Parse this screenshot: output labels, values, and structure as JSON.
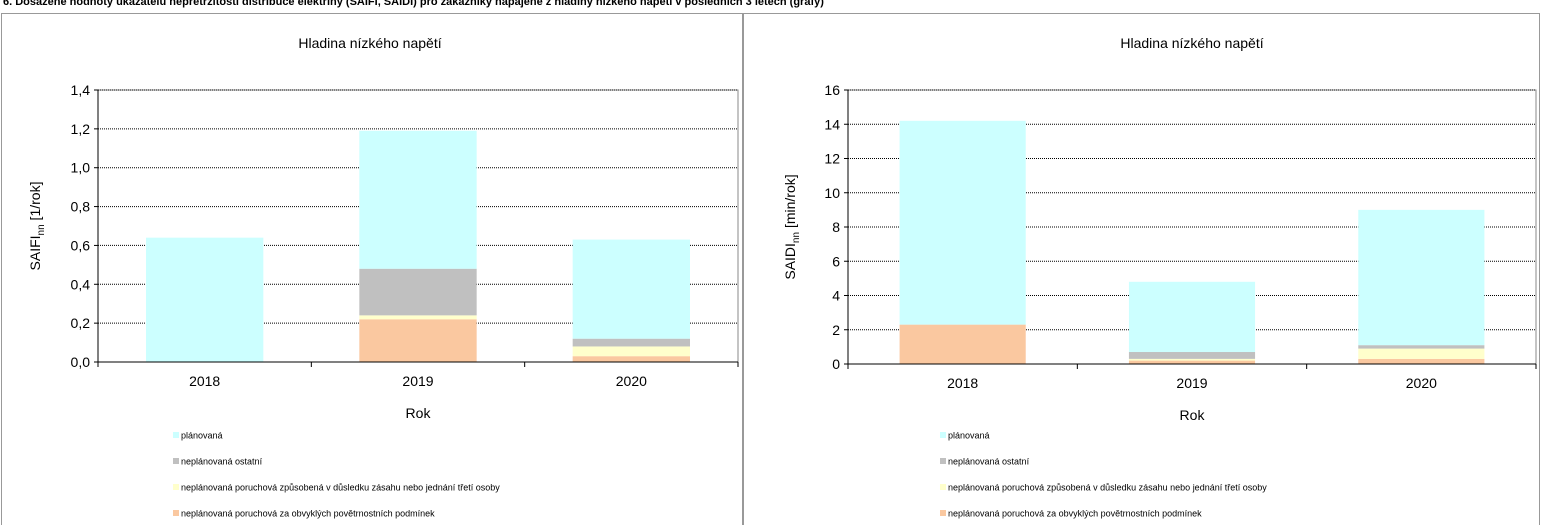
{
  "page_title": "6. Dosažené hodnoty ukazatelů nepřetržitosti distribuce elektřiny (SAIFI, SAIDI) pro zákazníky napájené z hladiny nízkého napětí v posledních 3 letech (grafy)",
  "chart_data": [
    {
      "type": "bar",
      "stacked": true,
      "title": "Hladina nízkého napětí",
      "ylabel": {
        "main": "SAIFI",
        "sub": "nn",
        "unit": " [1/rok]"
      },
      "xlabel": "Rok",
      "categories": [
        "2018",
        "2019",
        "2020"
      ],
      "series": [
        {
          "name": "plánovaná",
          "color": "#ccffff",
          "values": [
            0.64,
            0.71,
            0.51
          ]
        },
        {
          "name": "neplánovaná ostatní",
          "color": "#c0c0c0",
          "values": [
            0,
            0.24,
            0.04
          ]
        },
        {
          "name": "neplánovaná poruchová způsobená v důsledku zásahu nebo jednání třetí osoby",
          "color": "#ffffcc",
          "values": [
            0,
            0.02,
            0.05
          ]
        },
        {
          "name": "neplánovaná poruchová za obvyklých povětrnostních podmínek",
          "color": "#fac8a0",
          "values": [
            0,
            0.22,
            0.03
          ]
        }
      ],
      "ylim": [
        0,
        1.4
      ],
      "yticks": [
        {
          "value": 0,
          "label": "0,0"
        },
        {
          "value": 0.2,
          "label": "0,2"
        },
        {
          "value": 0.4,
          "label": "0,4"
        },
        {
          "value": 0.6,
          "label": "0,6"
        },
        {
          "value": 0.8,
          "label": "0,8"
        },
        {
          "value": 1.0,
          "label": "1,0"
        },
        {
          "value": 1.2,
          "label": "1,2"
        },
        {
          "value": 1.4,
          "label": "1,4"
        }
      ],
      "grid": true
    },
    {
      "type": "bar",
      "stacked": true,
      "title": "Hladina nízkého napětí",
      "ylabel": {
        "main": "SAIDI",
        "sub": "nn",
        "unit": " [min/rok]"
      },
      "xlabel": "Rok",
      "categories": [
        "2018",
        "2019",
        "2020"
      ],
      "series": [
        {
          "name": "plánovaná",
          "color": "#ccffff",
          "values": [
            11.9,
            4.1,
            7.9
          ]
        },
        {
          "name": "neplánovaná ostatní",
          "color": "#c0c0c0",
          "values": [
            0,
            0.4,
            0.2
          ]
        },
        {
          "name": "neplánovaná poruchová způsobená v důsledku zásahu nebo jednání třetí osoby",
          "color": "#ffffcc",
          "values": [
            0,
            0.1,
            0.6
          ]
        },
        {
          "name": "neplánovaná poruchová za obvyklých povětrnostních podmínek",
          "color": "#fac8a0",
          "values": [
            2.3,
            0.2,
            0.3
          ]
        }
      ],
      "ylim": [
        0,
        16
      ],
      "yticks": [
        0,
        2,
        4,
        6,
        8,
        10,
        12,
        14,
        16
      ],
      "grid": true
    }
  ]
}
